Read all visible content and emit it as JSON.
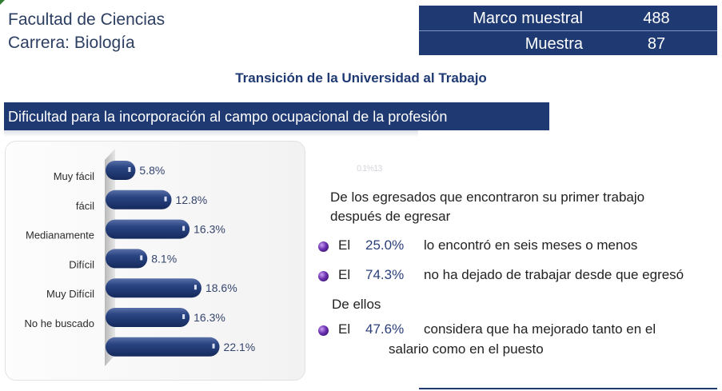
{
  "header": {
    "line1": "Facultad de Ciencias",
    "line2": "Carrera: Biología"
  },
  "stats": {
    "marco_label": "Marco muestral",
    "marco_value": "488",
    "muestra_label": "Muestra",
    "muestra_value": "87"
  },
  "title": "Transición de la Universidad al Trabajo",
  "band_title": "Dificultad para la incorporación al campo ocupacional  de la profesión",
  "chart_data": {
    "type": "bar",
    "orientation": "horizontal",
    "categories": [
      "Muy fácil",
      "fácil",
      "Medianamente",
      "Difícil",
      "Muy Difícil",
      "No he buscado",
      ""
    ],
    "values": [
      5.8,
      12.8,
      16.3,
      8.1,
      18.6,
      16.3,
      22.1
    ],
    "value_labels": [
      "5.8%",
      "12.8%",
      "16.3%",
      "8.1%",
      "18.6%",
      "16.3%",
      "22.1%"
    ],
    "xlim": [
      0,
      25
    ],
    "bar_color": "#1f3a73",
    "grid": false
  },
  "faint_text": "0.1%13",
  "info": {
    "intro": "De los egresados que encontraron su primer trabajo después de egresar",
    "items": [
      {
        "el": "El",
        "pct": "25.0%",
        "text": "lo encontró en seis meses o menos"
      },
      {
        "el": "El",
        "pct": "74.3%",
        "text": "no ha dejado de trabajar desde que egresó"
      }
    ],
    "de_ellos": "De ellos",
    "item3": {
      "el": "El",
      "pct": "47.6%",
      "line1": "considera que ha mejorado tanto en el",
      "line2": "salario como en el puesto"
    }
  }
}
